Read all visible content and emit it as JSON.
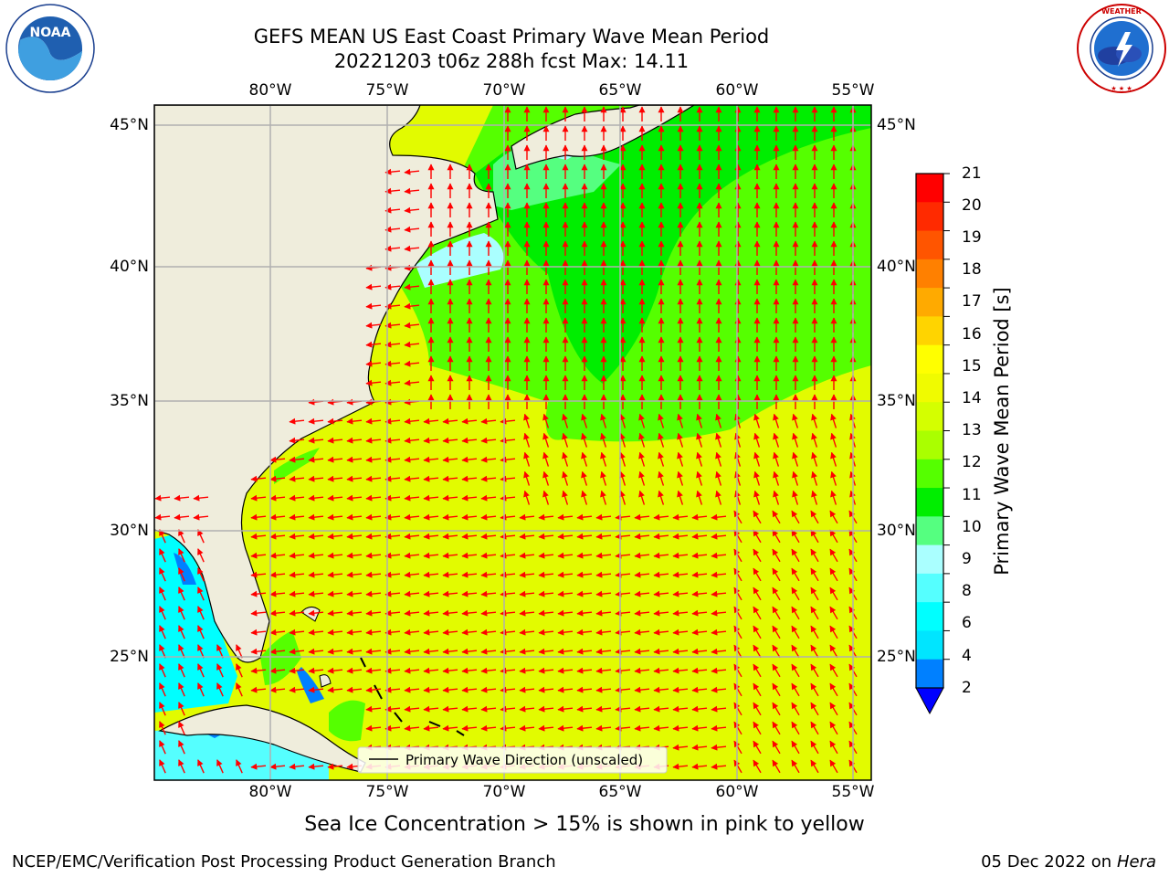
{
  "title": {
    "line1": "GEFS MEAN US East Coast Primary Wave Mean Period",
    "line2": "20221203 t06z 288h fcst   Max: 14.11"
  },
  "logos": {
    "left": "noaa-logo",
    "left_text": "NOAA",
    "right": "national-weather-service-logo",
    "right_text": "NATIONAL WEATHER SERVICE"
  },
  "map": {
    "lon_labels": [
      "80°W",
      "75°W",
      "70°W",
      "65°W",
      "60°W",
      "55°W"
    ],
    "lat_labels": [
      "45°N",
      "40°N",
      "35°N",
      "30°N",
      "25°N"
    ],
    "legend_label": "Primary Wave Direction (unscaled)",
    "arrow_color": "#ff0000",
    "land_color": "#efeddc",
    "grid": true
  },
  "colorbar": {
    "title": "Primary Wave Mean Period [s]",
    "ticks": [
      "21",
      "20",
      "19",
      "18",
      "17",
      "16",
      "15",
      "14",
      "13",
      "12",
      "11",
      "10",
      "9",
      "8",
      "6",
      "4",
      "2"
    ],
    "colors": [
      "#ff0000",
      "#ff2a00",
      "#ff5500",
      "#ff8000",
      "#ffaa00",
      "#ffd400",
      "#ffff00",
      "#f0fb00",
      "#d4ff00",
      "#aaff00",
      "#55ff00",
      "#00ee00",
      "#55ff80",
      "#aaffff",
      "#55ffff",
      "#00ffff",
      "#00e5ff",
      "#0080ff"
    ],
    "under_color": "#0000ff"
  },
  "notes": {
    "ice": "Sea Ice Concentration > 15% is shown in pink to yellow"
  },
  "footer": {
    "left": "NCEP/EMC/Verification Post Processing Product Generation Branch",
    "date": "05 Dec 2022 on",
    "machine": "Hera"
  }
}
